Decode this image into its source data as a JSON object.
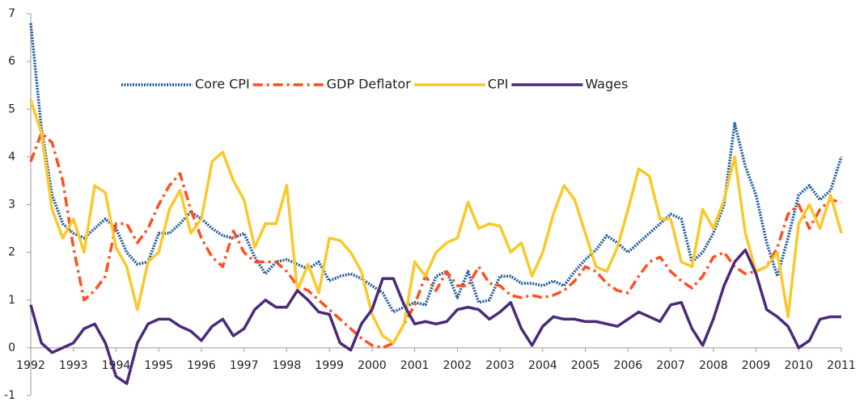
{
  "chart_data": {
    "type": "line",
    "x": [
      1992,
      1992.25,
      1992.5,
      1992.75,
      1993,
      1993.25,
      1993.5,
      1993.75,
      1994,
      1994.25,
      1994.5,
      1994.75,
      1995,
      1995.25,
      1995.5,
      1995.75,
      1996,
      1996.25,
      1996.5,
      1996.75,
      1997,
      1997.25,
      1997.5,
      1997.75,
      1998,
      1998.25,
      1998.5,
      1998.75,
      1999,
      1999.25,
      1999.5,
      1999.75,
      2000,
      2000.25,
      2000.5,
      2000.75,
      2001,
      2001.25,
      2001.5,
      2001.75,
      2002,
      2002.25,
      2002.5,
      2002.75,
      2003,
      2003.25,
      2003.5,
      2003.75,
      2004,
      2004.25,
      2004.5,
      2004.75,
      2005,
      2005.25,
      2005.5,
      2005.75,
      2006,
      2006.25,
      2006.5,
      2006.75,
      2007,
      2007.25,
      2007.5,
      2007.75,
      2008,
      2008.25,
      2008.5,
      2008.75,
      2009,
      2009.25,
      2009.5,
      2009.75,
      2010,
      2010.25,
      2010.5,
      2010.75,
      2011
    ],
    "series": [
      {
        "name": "Core CPI",
        "color": "#1f5a9a",
        "style": "dotted",
        "values": [
          6.8,
          4.6,
          3.2,
          2.6,
          2.4,
          2.3,
          2.5,
          2.7,
          2.5,
          2.0,
          1.75,
          1.8,
          2.4,
          2.4,
          2.6,
          2.85,
          2.7,
          2.5,
          2.35,
          2.3,
          2.4,
          1.9,
          1.55,
          1.8,
          1.85,
          1.75,
          1.65,
          1.8,
          1.4,
          1.5,
          1.55,
          1.45,
          1.3,
          1.15,
          0.75,
          0.85,
          0.95,
          0.9,
          1.5,
          1.6,
          1.05,
          1.6,
          0.95,
          1.0,
          1.5,
          1.5,
          1.35,
          1.35,
          1.3,
          1.4,
          1.3,
          1.6,
          1.85,
          2.05,
          2.35,
          2.2,
          2.0,
          2.2,
          2.4,
          2.6,
          2.8,
          2.7,
          1.8,
          2.0,
          2.4,
          3.0,
          4.7,
          3.8,
          3.2,
          2.2,
          1.5,
          2.3,
          3.2,
          3.4,
          3.1,
          3.3,
          4.0
        ]
      },
      {
        "name": "GDP Deflator",
        "color": "#ff4f1f",
        "style": "dashdot",
        "values": [
          3.9,
          4.5,
          4.3,
          3.5,
          2.1,
          1.0,
          1.2,
          1.5,
          2.6,
          2.6,
          2.2,
          2.5,
          3.0,
          3.4,
          3.65,
          2.9,
          2.3,
          1.9,
          1.7,
          2.45,
          2.0,
          1.8,
          1.8,
          1.8,
          1.6,
          1.3,
          1.2,
          1.0,
          0.8,
          0.6,
          0.4,
          0.2,
          0.05,
          0.0,
          0.1,
          0.5,
          0.9,
          1.5,
          1.2,
          1.6,
          1.3,
          1.3,
          1.7,
          1.35,
          1.3,
          1.1,
          1.05,
          1.1,
          1.05,
          1.1,
          1.2,
          1.4,
          1.7,
          1.6,
          1.35,
          1.2,
          1.15,
          1.5,
          1.8,
          1.9,
          1.6,
          1.4,
          1.25,
          1.5,
          1.9,
          2.0,
          1.7,
          1.55,
          1.6,
          1.7,
          2.1,
          2.8,
          3.0,
          2.5,
          2.9,
          3.1,
          3.05
        ]
      },
      {
        "name": "CPI",
        "color": "#fbc82a",
        "style": "solid",
        "values": [
          5.2,
          4.5,
          2.9,
          2.3,
          2.7,
          2.0,
          3.4,
          3.25,
          2.1,
          1.7,
          0.8,
          1.8,
          2.0,
          2.9,
          3.3,
          2.4,
          2.7,
          3.9,
          4.1,
          3.5,
          3.1,
          2.1,
          2.6,
          2.6,
          3.4,
          1.2,
          1.75,
          1.15,
          2.3,
          2.25,
          2.0,
          1.6,
          0.7,
          0.25,
          0.1,
          0.5,
          1.8,
          1.5,
          2.0,
          2.2,
          2.3,
          3.05,
          2.5,
          2.6,
          2.55,
          2.0,
          2.2,
          1.5,
          2.0,
          2.8,
          3.4,
          3.1,
          2.4,
          1.7,
          1.6,
          2.1,
          2.9,
          3.75,
          3.6,
          2.7,
          2.7,
          1.8,
          1.7,
          2.9,
          2.5,
          3.1,
          4.0,
          2.4,
          1.6,
          1.7,
          2.0,
          0.65,
          2.6,
          3.0,
          2.5,
          3.2,
          2.4
        ]
      },
      {
        "name": "Wages",
        "color": "#4b2a7a",
        "style": "solid",
        "values": [
          0.9,
          0.1,
          -0.1,
          0.0,
          0.1,
          0.4,
          0.5,
          0.1,
          -0.6,
          -0.75,
          0.1,
          0.5,
          0.6,
          0.6,
          0.45,
          0.35,
          0.15,
          0.45,
          0.6,
          0.25,
          0.4,
          0.8,
          1.0,
          0.85,
          0.85,
          1.2,
          1.0,
          0.75,
          0.7,
          0.1,
          -0.05,
          0.5,
          0.8,
          1.45,
          1.45,
          0.9,
          0.5,
          0.55,
          0.5,
          0.55,
          0.8,
          0.85,
          0.8,
          0.6,
          0.75,
          0.95,
          0.4,
          0.05,
          0.45,
          0.65,
          0.6,
          0.6,
          0.55,
          0.55,
          0.5,
          0.45,
          0.6,
          0.75,
          0.65,
          0.55,
          0.9,
          0.95,
          0.4,
          0.05,
          0.6,
          1.3,
          1.8,
          2.05,
          1.55,
          0.8,
          0.65,
          0.45,
          0.0,
          0.15,
          0.6,
          0.65,
          0.65
        ]
      }
    ],
    "xlim": [
      1992,
      2011
    ],
    "xticks": [
      1992,
      1993,
      1994,
      1995,
      1996,
      1997,
      1998,
      1999,
      2000,
      2001,
      2002,
      2003,
      2004,
      2005,
      2006,
      2007,
      2008,
      2009,
      2010,
      2011
    ],
    "ylim": [
      -1,
      7
    ],
    "yticks": [
      -1,
      0,
      1,
      2,
      3,
      4,
      5,
      6,
      7
    ],
    "grid": false
  }
}
